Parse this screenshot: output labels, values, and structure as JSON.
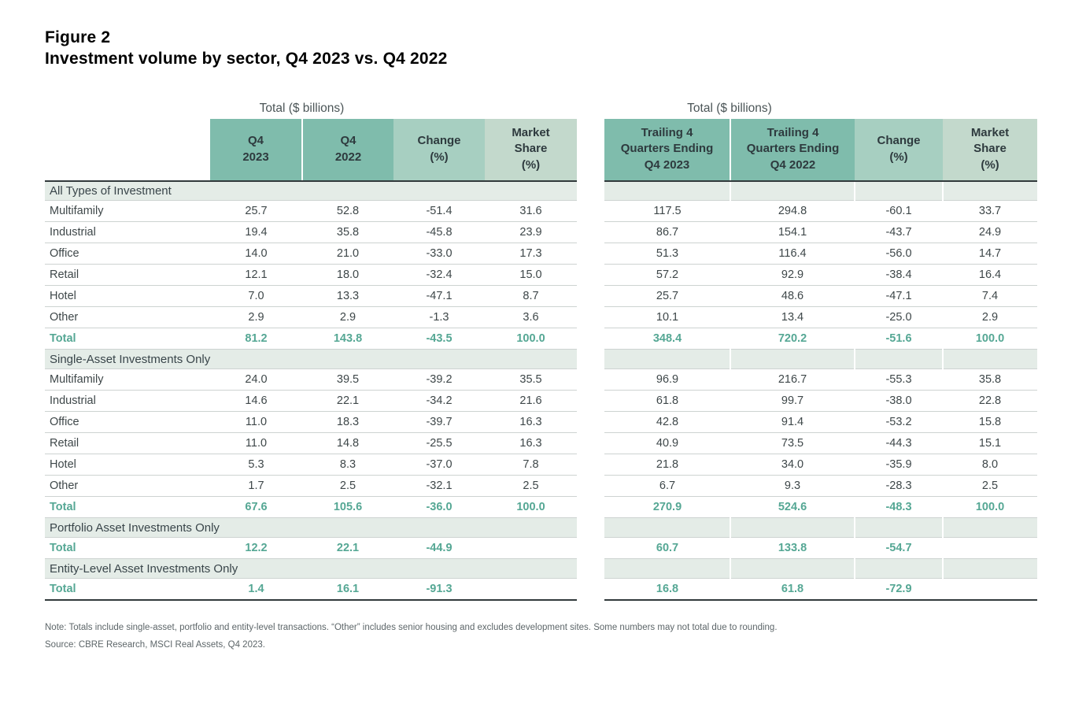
{
  "figure": {
    "label": "Figure 2",
    "title": "Investment volume by sector, Q4 2023 vs. Q4 2022"
  },
  "left_table": {
    "group_header": "Total ($ billions)",
    "columns": [
      "Q4\n2023",
      "Q4\n2022",
      "Change\n(%)",
      "Market\nShare\n(%)"
    ]
  },
  "right_table": {
    "group_header": "Total ($ billions)",
    "columns": [
      "Trailing 4\nQuarters Ending\nQ4 2023",
      "Trailing 4\nQuarters Ending\nQ4 2022",
      "Change\n(%)",
      "Market\nShare\n(%)"
    ]
  },
  "chart_data": {
    "type": "table",
    "title": "Investment volume by sector, Q4 2023 vs. Q4 2022",
    "units": "$ billions",
    "column_groups": [
      {
        "group_label": "Total ($ billions)",
        "columns": [
          "Q4 2023",
          "Q4 2022",
          "Change (%)",
          "Market Share (%)"
        ]
      },
      {
        "group_label": "Total ($ billions)",
        "columns": [
          "Trailing 4 Quarters Ending Q4 2023",
          "Trailing 4 Quarters Ending Q4 2022",
          "Change (%)",
          "Market Share (%)"
        ]
      }
    ],
    "sections": [
      {
        "title": "All Types of Investment",
        "rows": [
          {
            "label": "Multifamily",
            "q4": [
              "25.7",
              "52.8",
              "-51.4",
              "31.6"
            ],
            "trailing": [
              "117.5",
              "294.8",
              "-60.1",
              "33.7"
            ],
            "is_total": false
          },
          {
            "label": "Industrial",
            "q4": [
              "19.4",
              "35.8",
              "-45.8",
              "23.9"
            ],
            "trailing": [
              "86.7",
              "154.1",
              "-43.7",
              "24.9"
            ],
            "is_total": false
          },
          {
            "label": "Office",
            "q4": [
              "14.0",
              "21.0",
              "-33.0",
              "17.3"
            ],
            "trailing": [
              "51.3",
              "116.4",
              "-56.0",
              "14.7"
            ],
            "is_total": false
          },
          {
            "label": "Retail",
            "q4": [
              "12.1",
              "18.0",
              "-32.4",
              "15.0"
            ],
            "trailing": [
              "57.2",
              "92.9",
              "-38.4",
              "16.4"
            ],
            "is_total": false
          },
          {
            "label": "Hotel",
            "q4": [
              "7.0",
              "13.3",
              "-47.1",
              "8.7"
            ],
            "trailing": [
              "25.7",
              "48.6",
              "-47.1",
              "7.4"
            ],
            "is_total": false
          },
          {
            "label": "Other",
            "q4": [
              "2.9",
              "2.9",
              "-1.3",
              "3.6"
            ],
            "trailing": [
              "10.1",
              "13.4",
              "-25.0",
              "2.9"
            ],
            "is_total": false
          },
          {
            "label": "Total",
            "q4": [
              "81.2",
              "143.8",
              "-43.5",
              "100.0"
            ],
            "trailing": [
              "348.4",
              "720.2",
              "-51.6",
              "100.0"
            ],
            "is_total": true
          }
        ]
      },
      {
        "title": "Single-Asset Investments Only",
        "rows": [
          {
            "label": "Multifamily",
            "q4": [
              "24.0",
              "39.5",
              "-39.2",
              "35.5"
            ],
            "trailing": [
              "96.9",
              "216.7",
              "-55.3",
              "35.8"
            ],
            "is_total": false
          },
          {
            "label": "Industrial",
            "q4": [
              "14.6",
              "22.1",
              "-34.2",
              "21.6"
            ],
            "trailing": [
              "61.8",
              "99.7",
              "-38.0",
              "22.8"
            ],
            "is_total": false
          },
          {
            "label": "Office",
            "q4": [
              "11.0",
              "18.3",
              "-39.7",
              "16.3"
            ],
            "trailing": [
              "42.8",
              "91.4",
              "-53.2",
              "15.8"
            ],
            "is_total": false
          },
          {
            "label": "Retail",
            "q4": [
              "11.0",
              "14.8",
              "-25.5",
              "16.3"
            ],
            "trailing": [
              "40.9",
              "73.5",
              "-44.3",
              "15.1"
            ],
            "is_total": false
          },
          {
            "label": "Hotel",
            "q4": [
              "5.3",
              "8.3",
              "-37.0",
              "7.8"
            ],
            "trailing": [
              "21.8",
              "34.0",
              "-35.9",
              "8.0"
            ],
            "is_total": false
          },
          {
            "label": "Other",
            "q4": [
              "1.7",
              "2.5",
              "-32.1",
              "2.5"
            ],
            "trailing": [
              "6.7",
              "9.3",
              "-28.3",
              "2.5"
            ],
            "is_total": false
          },
          {
            "label": "Total",
            "q4": [
              "67.6",
              "105.6",
              "-36.0",
              "100.0"
            ],
            "trailing": [
              "270.9",
              "524.6",
              "-48.3",
              "100.0"
            ],
            "is_total": true
          }
        ]
      },
      {
        "title": "Portfolio Asset Investments Only",
        "rows": [
          {
            "label": "Total",
            "q4": [
              "12.2",
              "22.1",
              "-44.9",
              ""
            ],
            "trailing": [
              "60.7",
              "133.8",
              "-54.7",
              ""
            ],
            "is_total": true
          }
        ]
      },
      {
        "title": "Entity-Level Asset Investments Only",
        "rows": [
          {
            "label": "Total",
            "q4": [
              "1.4",
              "16.1",
              "-91.3",
              ""
            ],
            "trailing": [
              "16.8",
              "61.8",
              "-72.9",
              ""
            ],
            "is_total": true
          }
        ]
      }
    ]
  },
  "note": "Note: Totals include single-asset, portfolio and entity-level transactions. “Other” includes senior housing and excludes development sites. Some numbers may not total due to rounding.",
  "source": "Source: CBRE Research, MSCI Real Assets, Q4 2023.",
  "colors": {
    "teal_header": "#7fbcac",
    "change_header": "#a7cfc1",
    "market_header": "#c3d9cc",
    "section_band": "#e4ece7",
    "total_text": "#55a794",
    "dark_line": "#323a3c",
    "row_divider": "#cdd3d1",
    "body_text": "#3e4749",
    "note_text": "#5d6669"
  }
}
